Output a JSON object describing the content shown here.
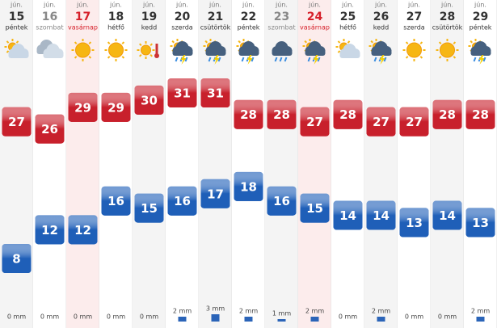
{
  "chart_data": {
    "type": "weather",
    "months": [
      "jún.",
      "jún.",
      "jún.",
      "jún.",
      "jún.",
      "jún.",
      "jún.",
      "jún.",
      "jún.",
      "jún.",
      "jún.",
      "jún.",
      "jún.",
      "jún.",
      "jún."
    ],
    "categories": [
      "15",
      "16",
      "17",
      "18",
      "19",
      "20",
      "21",
      "22",
      "23",
      "24",
      "25",
      "26",
      "27",
      "28",
      "29"
    ],
    "weekdays": [
      "péntek",
      "szombat",
      "vasárnap",
      "hétfő",
      "kedd",
      "szerda",
      "csütörtök",
      "péntek",
      "szombat",
      "vasárnap",
      "hétfő",
      "kedd",
      "szerda",
      "csütörtök",
      "péntek"
    ],
    "day_colors": [
      "#333",
      "#888",
      "#d6202a",
      "#333",
      "#333",
      "#333",
      "#333",
      "#333",
      "#888",
      "#d6202a",
      "#333",
      "#333",
      "#333",
      "#333",
      "#333"
    ],
    "column_colors": [
      "#f4f4f4",
      "#ffffff",
      "#fcecec",
      "#ffffff",
      "#f4f4f4",
      "#ffffff",
      "#f4f4f4",
      "#ffffff",
      "#f4f4f4",
      "#fcecec",
      "#ffffff",
      "#f4f4f4",
      "#ffffff",
      "#f4f4f4",
      "#ffffff"
    ],
    "icons": [
      "partly",
      "cloudy",
      "sun",
      "sun",
      "hot",
      "storm",
      "storm",
      "storm",
      "rain",
      "storm",
      "partly",
      "storm",
      "sun",
      "sun",
      "storm"
    ],
    "series": [
      {
        "name": "max",
        "color": "#c8202c",
        "values": [
          27,
          26,
          29,
          29,
          30,
          31,
          31,
          28,
          28,
          27,
          28,
          27,
          27,
          28,
          28
        ]
      },
      {
        "name": "min",
        "color": "#1f5fb8",
        "values": [
          8,
          12,
          12,
          16,
          15,
          16,
          17,
          18,
          16,
          15,
          14,
          14,
          13,
          14,
          13
        ]
      }
    ],
    "precipitation": {
      "color": "#2b64b8",
      "values": [
        0,
        0,
        0,
        0,
        0,
        2,
        3,
        2,
        1,
        2,
        0,
        2,
        0,
        0,
        2
      ],
      "value_labels": [
        "0 mm",
        "0 mm",
        "0 mm",
        "0 mm",
        "0 mm",
        "2 mm",
        "3 mm",
        "2 mm",
        "1 mm",
        "2 mm",
        "0 mm",
        "2 mm",
        "0 mm",
        "0 mm",
        "2 mm"
      ]
    }
  }
}
